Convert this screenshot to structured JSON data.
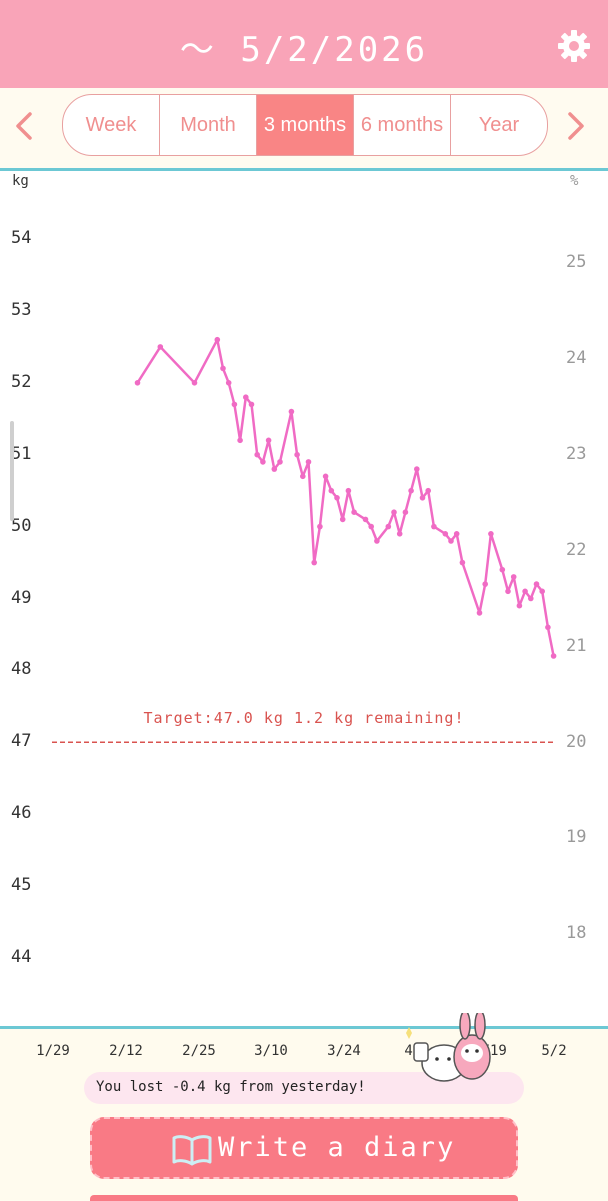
{
  "header": {
    "title": "～ 5/2/2026"
  },
  "tabs": [
    {
      "label": "Week",
      "active": false
    },
    {
      "label": "Month",
      "active": false
    },
    {
      "label": "3 months",
      "active": true
    },
    {
      "label": "6 months",
      "active": false
    },
    {
      "label": "Year",
      "active": false
    }
  ],
  "icons": {
    "settings": "gear-icon",
    "prev": "chevron-left-icon",
    "next": "chevron-right-icon",
    "diary": "book-icon"
  },
  "colors": {
    "header": "#f9a4b8",
    "line": "#f06bc4",
    "target": "#d9534f",
    "accent": "#f97a85",
    "divider": "#6cc8d4"
  },
  "chart_data": {
    "type": "line",
    "left_unit": "kg",
    "right_unit": "%",
    "y_left_ticks": [
      "54",
      "53",
      "52",
      "51",
      "50",
      "49",
      "48",
      "47",
      "46",
      "45",
      "44"
    ],
    "y_right_ticks": [
      "25",
      "24",
      "23",
      "22",
      "21",
      "20",
      "19",
      "18"
    ],
    "x_ticks": [
      "1/29",
      "2/12",
      "2/25",
      "3/10",
      "3/24",
      "4/6",
      "4/19",
      "5/2"
    ],
    "ylim": [
      43.5,
      54.8
    ],
    "target": {
      "value": 47.0,
      "label": "Target:47.0 kg 1.2 kg remaining!"
    },
    "series": [
      {
        "values": [
          [
            15,
            52.0
          ],
          [
            19,
            52.5
          ],
          [
            25,
            52.0
          ],
          [
            29,
            52.6
          ],
          [
            30,
            52.2
          ],
          [
            31,
            52.0
          ],
          [
            32,
            51.7
          ],
          [
            33,
            51.2
          ],
          [
            34,
            51.8
          ],
          [
            35,
            51.7
          ],
          [
            36,
            51.0
          ],
          [
            37,
            50.9
          ],
          [
            38,
            51.2
          ],
          [
            39,
            50.8
          ],
          [
            40,
            50.9
          ],
          [
            42,
            51.6
          ],
          [
            43,
            51.0
          ],
          [
            44,
            50.7
          ],
          [
            45,
            50.9
          ],
          [
            46,
            49.5
          ],
          [
            47,
            50.0
          ],
          [
            48,
            50.7
          ],
          [
            49,
            50.5
          ],
          [
            50,
            50.4
          ],
          [
            51,
            50.1
          ],
          [
            52,
            50.5
          ],
          [
            53,
            50.2
          ],
          [
            55,
            50.1
          ],
          [
            56,
            50.0
          ],
          [
            57,
            49.8
          ],
          [
            59,
            50.0
          ],
          [
            60,
            50.2
          ],
          [
            61,
            49.9
          ],
          [
            62,
            50.2
          ],
          [
            63,
            50.5
          ],
          [
            64,
            50.8
          ],
          [
            65,
            50.4
          ],
          [
            66,
            50.5
          ],
          [
            67,
            50.0
          ],
          [
            69,
            49.9
          ],
          [
            70,
            49.8
          ],
          [
            71,
            49.9
          ],
          [
            72,
            49.5
          ],
          [
            75,
            48.8
          ],
          [
            76,
            49.2
          ],
          [
            77,
            49.9
          ],
          [
            79,
            49.4
          ],
          [
            80,
            49.1
          ],
          [
            81,
            49.3
          ],
          [
            82,
            48.9
          ],
          [
            83,
            49.1
          ],
          [
            84,
            49.0
          ],
          [
            85,
            49.2
          ],
          [
            86,
            49.1
          ],
          [
            87,
            48.6
          ],
          [
            88,
            48.2
          ]
        ]
      }
    ]
  },
  "footer": {
    "message": "You lost -0.4 kg from yesterday!",
    "diary_button": "Write a diary"
  }
}
